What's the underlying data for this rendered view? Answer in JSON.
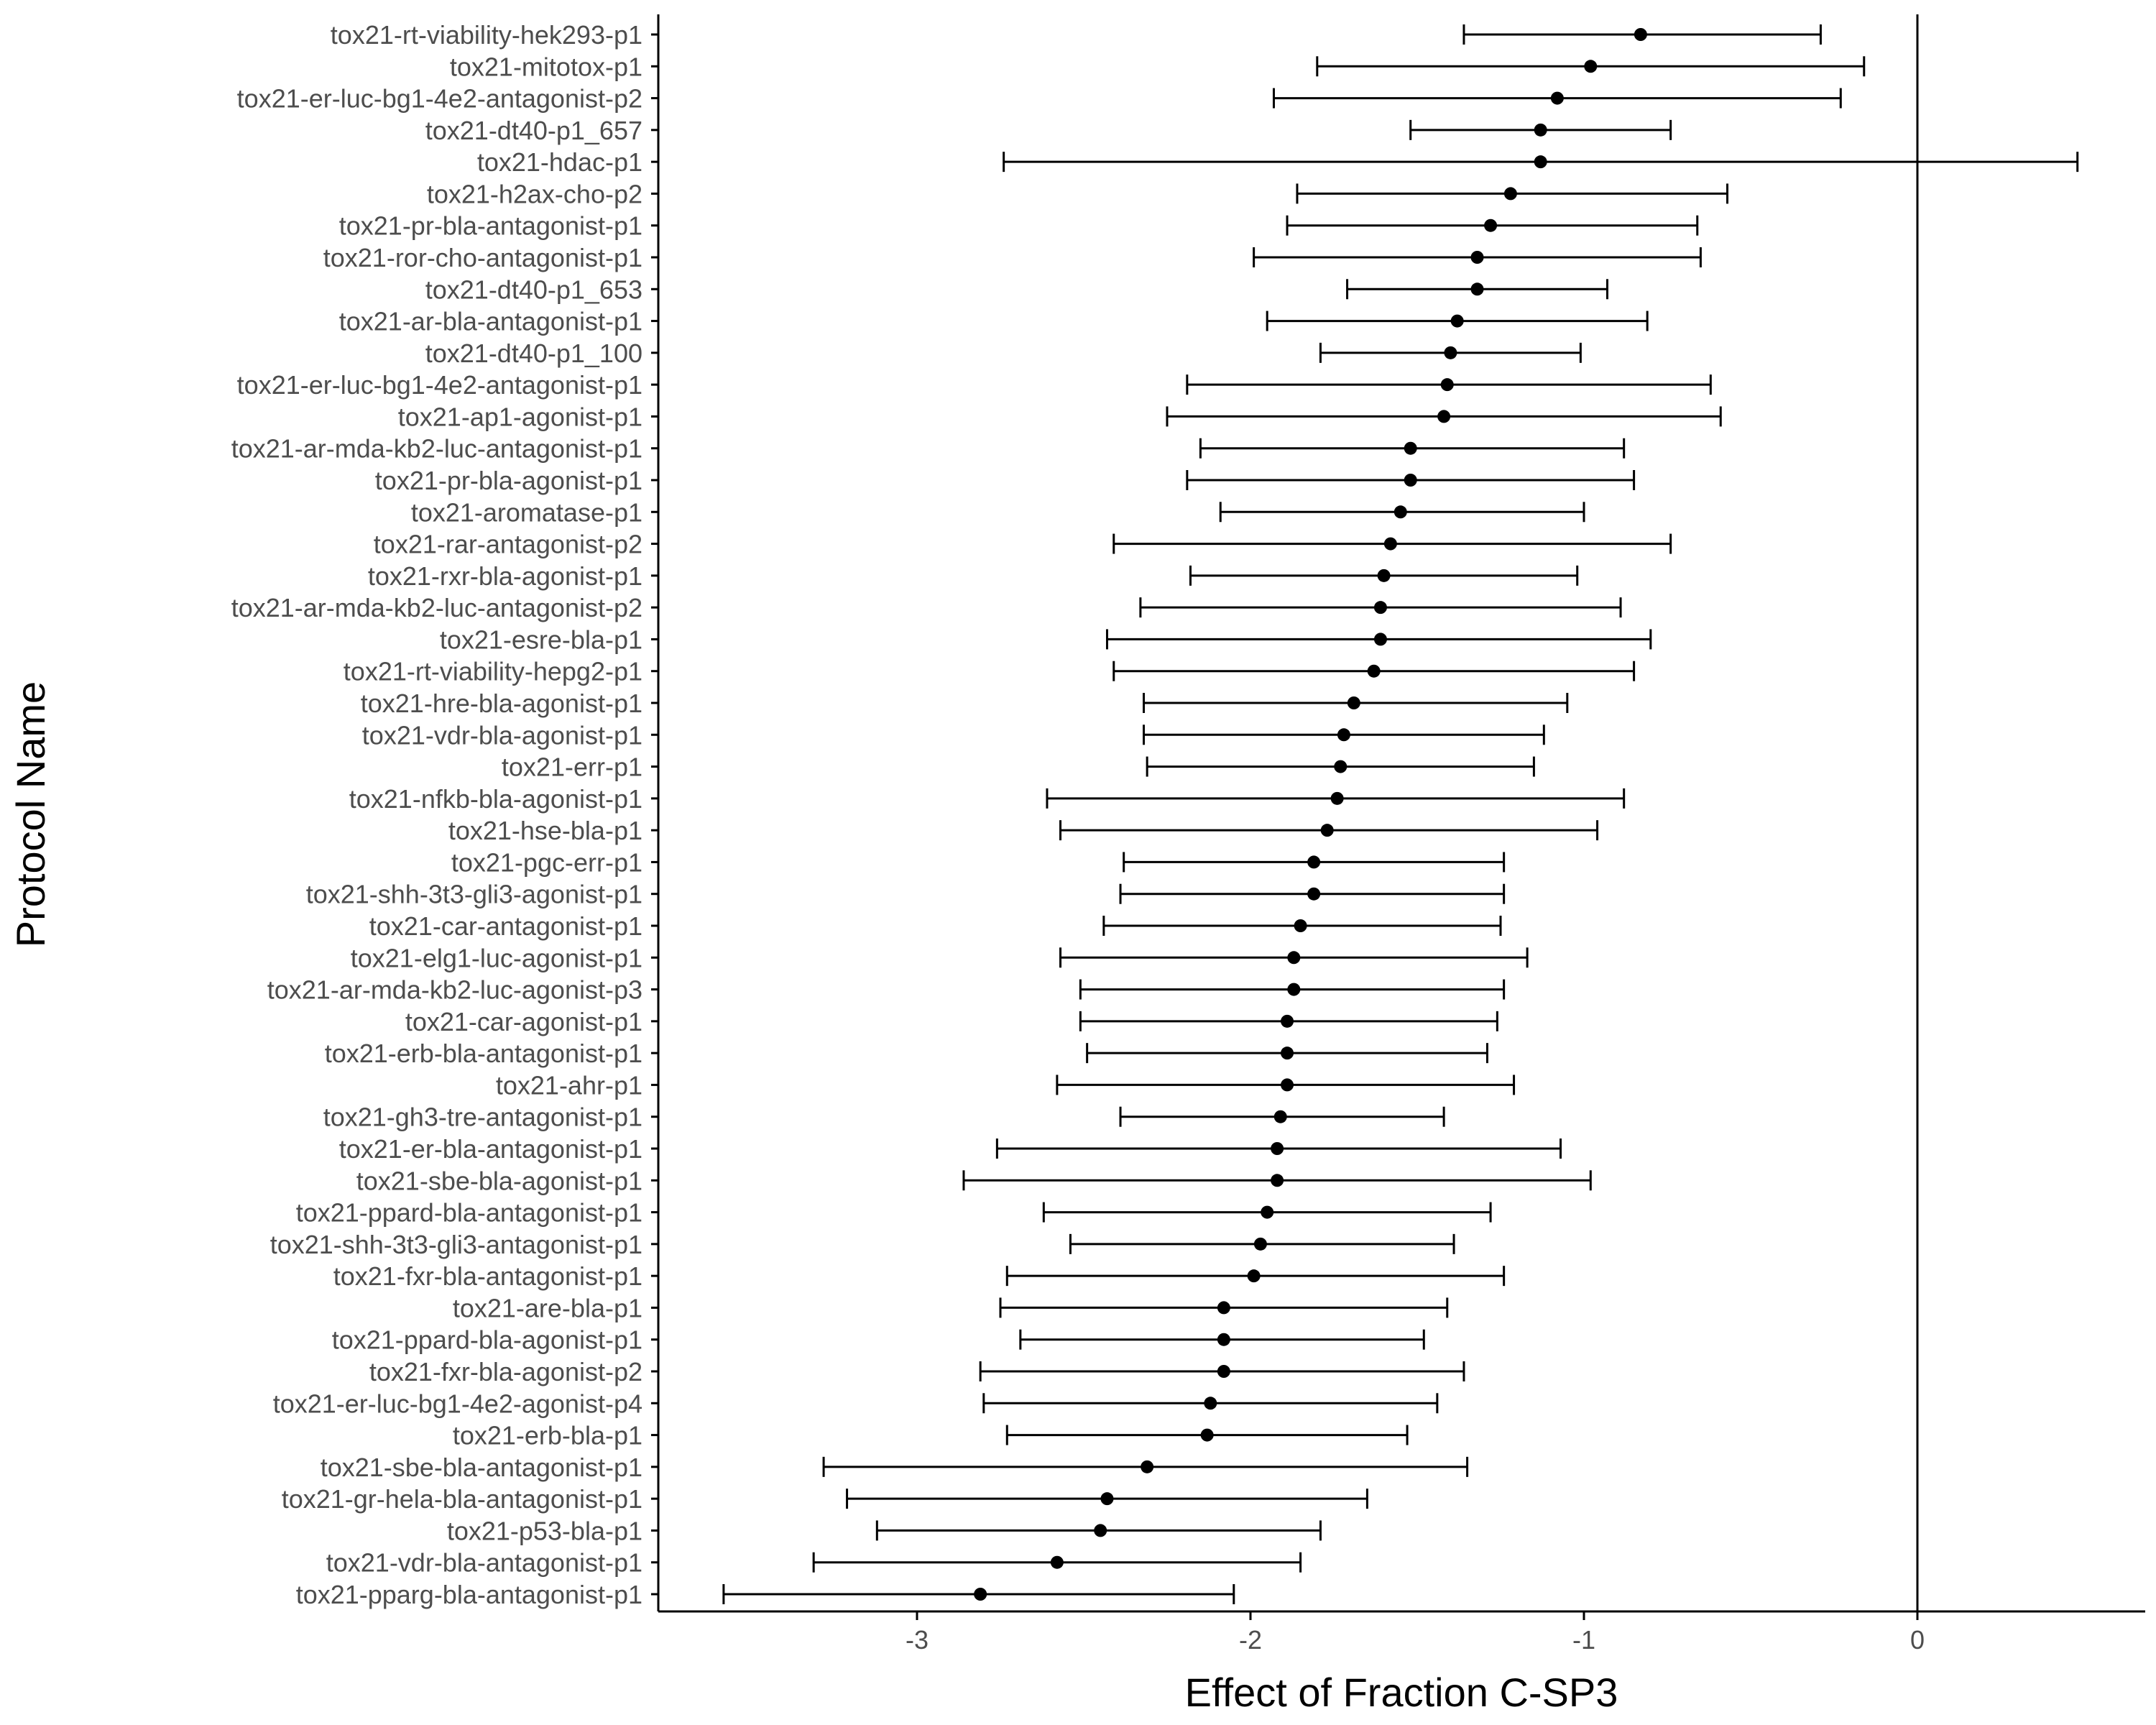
{
  "chart_data": {
    "type": "forest",
    "xlabel": "Effect of Fraction C-SP3",
    "ylabel": "Protocol Name",
    "xlim": [
      -3.8,
      0.7
    ],
    "x_ticks": [
      -3,
      -2,
      -1,
      0
    ],
    "x_tick_labels": [
      "-3",
      "-2",
      "-1",
      "0"
    ],
    "reference_line_x": 0,
    "grid": false,
    "colors": {
      "point": "#000000",
      "errorbar": "#000000",
      "axis": "#000000",
      "tick_label": "#4d4d4d"
    },
    "rows": [
      {
        "name": "tox21-rt-viability-hek293-p1",
        "estimate": -0.83,
        "lower": -1.36,
        "upper": -0.29
      },
      {
        "name": "tox21-mitotox-p1",
        "estimate": -0.98,
        "lower": -1.8,
        "upper": -0.16
      },
      {
        "name": "tox21-er-luc-bg1-4e2-antagonist-p2",
        "estimate": -1.08,
        "lower": -1.93,
        "upper": -0.23
      },
      {
        "name": "tox21-dt40-p1_657",
        "estimate": -1.13,
        "lower": -1.52,
        "upper": -0.74
      },
      {
        "name": "tox21-hdac-p1",
        "estimate": -1.13,
        "lower": -2.74,
        "upper": 0.48
      },
      {
        "name": "tox21-h2ax-cho-p2",
        "estimate": -1.22,
        "lower": -1.86,
        "upper": -0.57
      },
      {
        "name": "tox21-pr-bla-antagonist-p1",
        "estimate": -1.28,
        "lower": -1.89,
        "upper": -0.66
      },
      {
        "name": "tox21-ror-cho-antagonist-p1",
        "estimate": -1.32,
        "lower": -1.99,
        "upper": -0.65
      },
      {
        "name": "tox21-dt40-p1_653",
        "estimate": -1.32,
        "lower": -1.71,
        "upper": -0.93
      },
      {
        "name": "tox21-ar-bla-antagonist-p1",
        "estimate": -1.38,
        "lower": -1.95,
        "upper": -0.81
      },
      {
        "name": "tox21-dt40-p1_100",
        "estimate": -1.4,
        "lower": -1.79,
        "upper": -1.01
      },
      {
        "name": "tox21-er-luc-bg1-4e2-antagonist-p1",
        "estimate": -1.41,
        "lower": -2.19,
        "upper": -0.62
      },
      {
        "name": "tox21-ap1-agonist-p1",
        "estimate": -1.42,
        "lower": -2.25,
        "upper": -0.59
      },
      {
        "name": "tox21-ar-mda-kb2-luc-antagonist-p1",
        "estimate": -1.52,
        "lower": -2.15,
        "upper": -0.88
      },
      {
        "name": "tox21-pr-bla-agonist-p1",
        "estimate": -1.52,
        "lower": -2.19,
        "upper": -0.85
      },
      {
        "name": "tox21-aromatase-p1",
        "estimate": -1.55,
        "lower": -2.09,
        "upper": -1.0
      },
      {
        "name": "tox21-rar-antagonist-p2",
        "estimate": -1.58,
        "lower": -2.41,
        "upper": -0.74
      },
      {
        "name": "tox21-rxr-bla-agonist-p1",
        "estimate": -1.6,
        "lower": -2.18,
        "upper": -1.02
      },
      {
        "name": "tox21-ar-mda-kb2-luc-antagonist-p2",
        "estimate": -1.61,
        "lower": -2.33,
        "upper": -0.89
      },
      {
        "name": "tox21-esre-bla-p1",
        "estimate": -1.61,
        "lower": -2.43,
        "upper": -0.8
      },
      {
        "name": "tox21-rt-viability-hepg2-p1",
        "estimate": -1.63,
        "lower": -2.41,
        "upper": -0.85
      },
      {
        "name": "tox21-hre-bla-agonist-p1",
        "estimate": -1.69,
        "lower": -2.32,
        "upper": -1.05
      },
      {
        "name": "tox21-vdr-bla-agonist-p1",
        "estimate": -1.72,
        "lower": -2.32,
        "upper": -1.12
      },
      {
        "name": "tox21-err-p1",
        "estimate": -1.73,
        "lower": -2.31,
        "upper": -1.15
      },
      {
        "name": "tox21-nfkb-bla-agonist-p1",
        "estimate": -1.74,
        "lower": -2.61,
        "upper": -0.88
      },
      {
        "name": "tox21-hse-bla-p1",
        "estimate": -1.77,
        "lower": -2.57,
        "upper": -0.96
      },
      {
        "name": "tox21-pgc-err-p1",
        "estimate": -1.81,
        "lower": -2.38,
        "upper": -1.24
      },
      {
        "name": "tox21-shh-3t3-gli3-agonist-p1",
        "estimate": -1.81,
        "lower": -2.39,
        "upper": -1.24
      },
      {
        "name": "tox21-car-antagonist-p1",
        "estimate": -1.85,
        "lower": -2.44,
        "upper": -1.25
      },
      {
        "name": "tox21-elg1-luc-agonist-p1",
        "estimate": -1.87,
        "lower": -2.57,
        "upper": -1.17
      },
      {
        "name": "tox21-ar-mda-kb2-luc-agonist-p3",
        "estimate": -1.87,
        "lower": -2.51,
        "upper": -1.24
      },
      {
        "name": "tox21-car-agonist-p1",
        "estimate": -1.89,
        "lower": -2.51,
        "upper": -1.26
      },
      {
        "name": "tox21-erb-bla-antagonist-p1",
        "estimate": -1.89,
        "lower": -2.49,
        "upper": -1.29
      },
      {
        "name": "tox21-ahr-p1",
        "estimate": -1.89,
        "lower": -2.58,
        "upper": -1.21
      },
      {
        "name": "tox21-gh3-tre-antagonist-p1",
        "estimate": -1.91,
        "lower": -2.39,
        "upper": -1.42
      },
      {
        "name": "tox21-er-bla-antagonist-p1",
        "estimate": -1.92,
        "lower": -2.76,
        "upper": -1.07
      },
      {
        "name": "tox21-sbe-bla-agonist-p1",
        "estimate": -1.92,
        "lower": -2.86,
        "upper": -0.98
      },
      {
        "name": "tox21-ppard-bla-antagonist-p1",
        "estimate": -1.95,
        "lower": -2.62,
        "upper": -1.28
      },
      {
        "name": "tox21-shh-3t3-gli3-antagonist-p1",
        "estimate": -1.97,
        "lower": -2.54,
        "upper": -1.39
      },
      {
        "name": "tox21-fxr-bla-antagonist-p1",
        "estimate": -1.99,
        "lower": -2.73,
        "upper": -1.24
      },
      {
        "name": "tox21-are-bla-p1",
        "estimate": -2.08,
        "lower": -2.75,
        "upper": -1.41
      },
      {
        "name": "tox21-ppard-bla-agonist-p1",
        "estimate": -2.08,
        "lower": -2.69,
        "upper": -1.48
      },
      {
        "name": "tox21-fxr-bla-agonist-p2",
        "estimate": -2.08,
        "lower": -2.81,
        "upper": -1.36
      },
      {
        "name": "tox21-er-luc-bg1-4e2-agonist-p4",
        "estimate": -2.12,
        "lower": -2.8,
        "upper": -1.44
      },
      {
        "name": "tox21-erb-bla-p1",
        "estimate": -2.13,
        "lower": -2.73,
        "upper": -1.53
      },
      {
        "name": "tox21-sbe-bla-antagonist-p1",
        "estimate": -2.31,
        "lower": -3.28,
        "upper": -1.35
      },
      {
        "name": "tox21-gr-hela-bla-antagonist-p1",
        "estimate": -2.43,
        "lower": -3.21,
        "upper": -1.65
      },
      {
        "name": "tox21-p53-bla-p1",
        "estimate": -2.45,
        "lower": -3.12,
        "upper": -1.79
      },
      {
        "name": "tox21-vdr-bla-antagonist-p1",
        "estimate": -2.58,
        "lower": -3.31,
        "upper": -1.85
      },
      {
        "name": "tox21-pparg-bla-antagonist-p1",
        "estimate": -2.81,
        "lower": -3.58,
        "upper": -2.05
      }
    ]
  }
}
